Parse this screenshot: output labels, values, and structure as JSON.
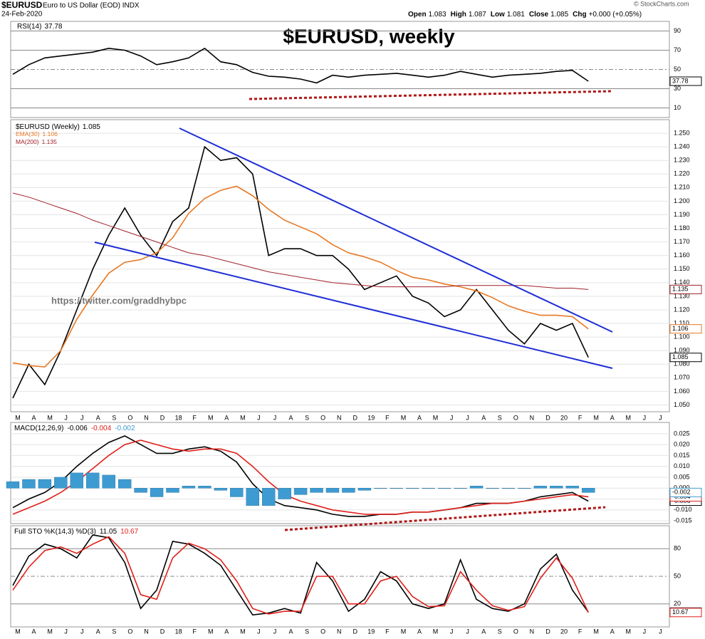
{
  "header": {
    "symbol": "$EURUSD",
    "description": "Euro to US Dollar (EOD) INDX",
    "date": "24-Feb-2020",
    "quote": [
      {
        "label": "Open",
        "value": "1.083"
      },
      {
        "label": "High",
        "value": "1.087"
      },
      {
        "label": "Low",
        "value": "1.081"
      },
      {
        "label": "Close",
        "value": "1.085"
      },
      {
        "label": "Chg",
        "value": "+0.000 (+0.05%)"
      }
    ],
    "copyright": "© StockCharts.com"
  },
  "title": "$EURUSD, weekly",
  "watermark": "https://twitter.com/graddhybpc",
  "chart_data": [
    {
      "type": "line",
      "ylim": [
        0,
        100
      ],
      "yticks": [
        90,
        70,
        50,
        30,
        10
      ],
      "series": [
        {
          "name": "RSI(14)",
          "color": "#000000",
          "values": [
            45,
            55,
            62,
            64,
            66,
            68,
            72,
            70,
            64,
            55,
            58,
            62,
            72,
            58,
            55,
            47,
            43,
            42,
            40,
            36,
            44,
            42,
            44,
            45,
            46,
            44,
            42,
            44,
            48,
            45,
            42,
            44,
            45,
            46,
            48,
            49,
            37.78
          ]
        }
      ]
    },
    {
      "type": "line",
      "ylim": [
        1.045,
        1.26
      ],
      "yticks": [
        {
          "value": 1.05,
          "label": "1.050"
        },
        {
          "value": 1.06,
          "label": "1.060"
        },
        {
          "value": 1.07,
          "label": "1.070"
        },
        {
          "value": 1.08,
          "label": "1.080"
        },
        {
          "value": 1.09,
          "label": "1.090"
        },
        {
          "value": 1.1,
          "label": "1.100"
        },
        {
          "value": 1.11,
          "label": "1.110"
        },
        {
          "value": 1.12,
          "label": "1.120"
        },
        {
          "value": 1.13,
          "label": "1.130"
        },
        {
          "value": 1.14,
          "label": "1.140"
        },
        {
          "value": 1.15,
          "label": "1.150"
        },
        {
          "value": 1.16,
          "label": "1.160"
        },
        {
          "value": 1.17,
          "label": "1.170"
        },
        {
          "value": 1.18,
          "label": "1.180"
        },
        {
          "value": 1.19,
          "label": "1.190"
        },
        {
          "value": 1.2,
          "label": "1.200"
        },
        {
          "value": 1.21,
          "label": "1.210"
        },
        {
          "value": 1.22,
          "label": "1.220"
        },
        {
          "value": 1.23,
          "label": "1.230"
        },
        {
          "value": 1.24,
          "label": "1.240"
        },
        {
          "value": 1.25,
          "label": "1.250"
        }
      ],
      "month_labels": [
        "M",
        "A",
        "M",
        "J",
        "J",
        "A",
        "S",
        "O",
        "N",
        "D",
        "18",
        "F",
        "M",
        "A",
        "M",
        "J",
        "J",
        "A",
        "S",
        "O",
        "N",
        "D",
        "19",
        "F",
        "M",
        "A",
        "M",
        "J",
        "J",
        "A",
        "S",
        "O",
        "N",
        "D",
        "20",
        "F",
        "M",
        "A",
        "M",
        "J",
        "J"
      ],
      "series": [
        {
          "name": "$EURUSD (Weekly)",
          "color": "#000000",
          "values": [
            1.055,
            1.08,
            1.065,
            1.09,
            1.12,
            1.15,
            1.175,
            1.195,
            1.175,
            1.16,
            1.185,
            1.195,
            1.24,
            1.23,
            1.232,
            1.22,
            1.16,
            1.165,
            1.165,
            1.16,
            1.16,
            1.15,
            1.135,
            1.14,
            1.145,
            1.13,
            1.125,
            1.115,
            1.12,
            1.135,
            1.12,
            1.105,
            1.095,
            1.11,
            1.105,
            1.11,
            1.085
          ]
        },
        {
          "name": "EMA(30)",
          "color": "#e87722",
          "values": [
            1.081,
            1.079,
            1.078,
            1.09,
            1.113,
            1.131,
            1.147,
            1.155,
            1.157,
            1.162,
            1.173,
            1.191,
            1.202,
            1.208,
            1.211,
            1.204,
            1.194,
            1.186,
            1.181,
            1.176,
            1.168,
            1.162,
            1.159,
            1.155,
            1.149,
            1.144,
            1.142,
            1.139,
            1.137,
            1.134,
            1.129,
            1.123,
            1.119,
            1.116,
            1.116,
            1.115,
            1.106
          ]
        },
        {
          "name": "MA(200)",
          "color": "#a0202a",
          "values": [
            1.206,
            1.203,
            1.199,
            1.195,
            1.191,
            1.186,
            1.182,
            1.178,
            1.174,
            1.17,
            1.166,
            1.162,
            1.16,
            1.157,
            1.154,
            1.151,
            1.148,
            1.146,
            1.144,
            1.142,
            1.14,
            1.139,
            1.138,
            1.137,
            1.137,
            1.137,
            1.137,
            1.137,
            1.138,
            1.138,
            1.138,
            1.138,
            1.138,
            1.137,
            1.136,
            1.136,
            1.135
          ]
        }
      ]
    },
    {
      "type": "line",
      "ylim": [
        -0.0163,
        0.0302
      ],
      "yticks": [
        {
          "value": 0.025,
          "label": "0.025"
        },
        {
          "value": 0.02,
          "label": "0.020"
        },
        {
          "value": 0.015,
          "label": "0.015"
        },
        {
          "value": 0.01,
          "label": "0.010"
        },
        {
          "value": 0.005,
          "label": "0.005"
        },
        {
          "value": 0,
          "label": "0.000"
        },
        {
          "value": -0.005,
          "label": "-0.005"
        },
        {
          "value": -0.01,
          "label": "-0.010"
        },
        {
          "value": -0.015,
          "label": "-0.015"
        }
      ],
      "name": "MACD(12,26,9)",
      "series": [
        {
          "name": "MACD",
          "color": "#000000",
          "values": [
            -0.009,
            -0.005,
            -0.002,
            0.003,
            0.01,
            0.016,
            0.021,
            0.024,
            0.02,
            0.016,
            0.016,
            0.018,
            0.019,
            0.017,
            0.012,
            0.002,
            -0.005,
            -0.008,
            -0.009,
            -0.01,
            -0.012,
            -0.013,
            -0.013,
            -0.012,
            -0.012,
            -0.011,
            -0.011,
            -0.01,
            -0.009,
            -0.007,
            -0.007,
            -0.007,
            -0.006,
            -0.004,
            -0.003,
            -0.002,
            -0.006
          ]
        },
        {
          "name": "Signal",
          "color": "#e0201b",
          "values": [
            -0.012,
            -0.009,
            -0.006,
            -0.002,
            0.003,
            0.009,
            0.015,
            0.02,
            0.022,
            0.02,
            0.018,
            0.017,
            0.018,
            0.018,
            0.016,
            0.01,
            0.003,
            -0.003,
            -0.006,
            -0.008,
            -0.01,
            -0.011,
            -0.012,
            -0.012,
            -0.012,
            -0.011,
            -0.011,
            -0.01,
            -0.009,
            -0.008,
            -0.007,
            -0.007,
            -0.006,
            -0.005,
            -0.004,
            -0.003,
            -0.004
          ]
        },
        {
          "name": "Histogram",
          "type": "bar",
          "color": "#3d9bd1",
          "values": [
            0.003,
            0.004,
            0.004,
            0.005,
            0.007,
            0.007,
            0.006,
            0.004,
            -0.002,
            -0.004,
            -0.002,
            0.001,
            0.001,
            -0.001,
            -0.004,
            -0.008,
            -0.008,
            -0.005,
            -0.003,
            -0.002,
            -0.002,
            -0.002,
            -0.001,
            0,
            0,
            0,
            0,
            0,
            0,
            0.001,
            0,
            0,
            0,
            0.001,
            0.001,
            0.001,
            -0.002
          ]
        }
      ]
    },
    {
      "type": "line",
      "ylim": [
        -5,
        105
      ],
      "yticks": [
        80,
        50,
        20
      ],
      "name": "Full STO %K(14,3) %D(3)",
      "month_labels": [
        "M",
        "A",
        "M",
        "J",
        "J",
        "A",
        "S",
        "O",
        "N",
        "D",
        "18",
        "F",
        "M",
        "A",
        "M",
        "J",
        "J",
        "A",
        "S",
        "O",
        "N",
        "D",
        "19",
        "F",
        "M",
        "A",
        "M",
        "J",
        "J",
        "A",
        "S",
        "O",
        "N",
        "D",
        "20",
        "F",
        "M",
        "A",
        "M",
        "J",
        "J"
      ],
      "series": [
        {
          "name": "%K",
          "color": "#000000",
          "values": [
            40,
            72,
            85,
            80,
            70,
            95,
            92,
            65,
            15,
            35,
            88,
            85,
            75,
            62,
            35,
            8,
            10,
            15,
            10,
            65,
            45,
            12,
            25,
            55,
            45,
            20,
            15,
            20,
            68,
            25,
            15,
            12,
            20,
            58,
            74,
            35,
            11.05
          ]
        },
        {
          "name": "%D",
          "color": "#e0201b",
          "values": [
            35,
            60,
            78,
            82,
            75,
            85,
            93,
            75,
            30,
            25,
            70,
            86,
            80,
            68,
            45,
            15,
            9,
            12,
            12,
            50,
            50,
            20,
            20,
            45,
            50,
            28,
            17,
            18,
            55,
            35,
            18,
            13,
            17,
            48,
            70,
            48,
            10.67
          ]
        }
      ]
    }
  ]
}
